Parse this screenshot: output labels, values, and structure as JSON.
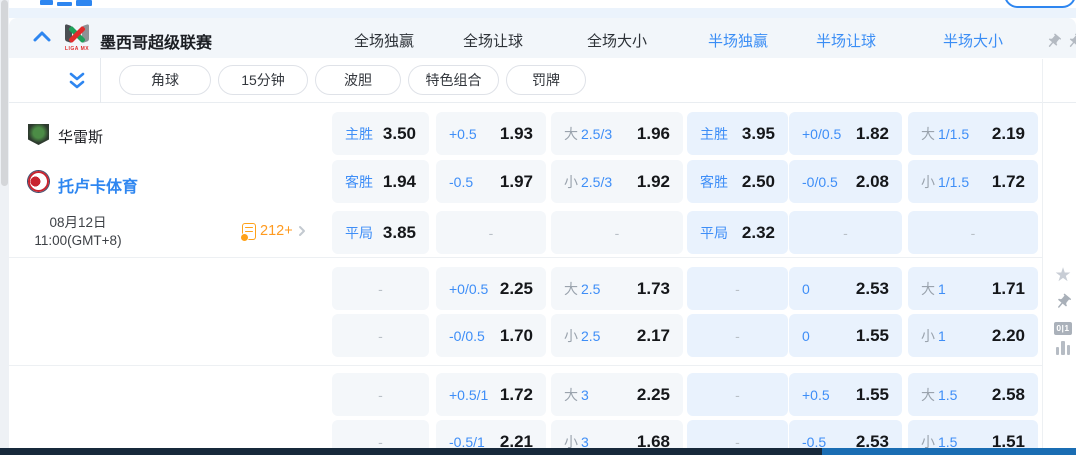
{
  "league": {
    "title": "墨西哥超级联赛",
    "market_headers_full": [
      "全场独赢",
      "全场让球",
      "全场大小"
    ],
    "market_headers_half": [
      "半场独赢",
      "半场让球",
      "半场大小"
    ]
  },
  "subtabs": [
    "角球",
    "15分钟",
    "波胆",
    "特色组合",
    "罚牌"
  ],
  "match": {
    "home_team": "华雷斯",
    "away_team": "托卢卡体育",
    "date": "08月12日",
    "time": "11:00(GMT+8)",
    "markets_count": "212+"
  },
  "liga_logo_text": "LIGA MX",
  "rail": {
    "badge_label": "0|1"
  },
  "odds": {
    "dash": "-",
    "sections": [
      [
        [
          {
            "l": "主胜",
            "v": "3.50"
          },
          {
            "l": "+0.5",
            "v": "1.93"
          },
          {
            "p": "大",
            "l": "2.5/3",
            "v": "1.96"
          },
          {
            "l": "主胜",
            "v": "3.95"
          },
          {
            "l": "+0/0.5",
            "v": "1.82"
          },
          {
            "p": "大",
            "l": "1/1.5",
            "v": "2.19"
          }
        ],
        [
          {
            "l": "客胜",
            "v": "1.94"
          },
          {
            "l": "-0.5",
            "v": "1.97"
          },
          {
            "p": "小",
            "l": "2.5/3",
            "v": "1.92"
          },
          {
            "l": "客胜",
            "v": "2.50"
          },
          {
            "l": "-0/0.5",
            "v": "2.08"
          },
          {
            "p": "小",
            "l": "1/1.5",
            "v": "1.72"
          }
        ],
        [
          {
            "l": "平局",
            "v": "3.85"
          },
          {},
          {},
          {
            "l": "平局",
            "v": "2.32"
          },
          {},
          {}
        ]
      ],
      [
        [
          {},
          {
            "l": "+0/0.5",
            "v": "2.25"
          },
          {
            "p": "大",
            "l": "2.5",
            "v": "1.73"
          },
          {},
          {
            "l": "0",
            "v": "2.53"
          },
          {
            "p": "大",
            "l": "1",
            "v": "1.71"
          }
        ],
        [
          {},
          {
            "l": "-0/0.5",
            "v": "1.70"
          },
          {
            "p": "小",
            "l": "2.5",
            "v": "2.17"
          },
          {},
          {
            "l": "0",
            "v": "1.55"
          },
          {
            "p": "小",
            "l": "1",
            "v": "2.20"
          }
        ]
      ],
      [
        [
          {},
          {
            "l": "+0.5/1",
            "v": "1.72"
          },
          {
            "p": "大",
            "l": "3",
            "v": "2.25"
          },
          {},
          {
            "l": "+0.5",
            "v": "1.55"
          },
          {
            "p": "大",
            "l": "1.5",
            "v": "2.58"
          }
        ],
        [
          {},
          {
            "l": "-0.5/1",
            "v": "2.21"
          },
          {
            "p": "小",
            "l": "3",
            "v": "1.68"
          },
          {},
          {
            "l": "-0.5",
            "v": "2.53"
          },
          {
            "p": "小",
            "l": "1.5",
            "v": "1.51"
          }
        ]
      ]
    ]
  }
}
